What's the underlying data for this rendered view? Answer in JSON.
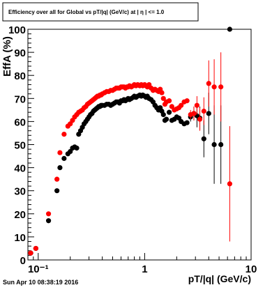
{
  "title": "Efficiency over all for Global vs pT/|q| (GeV/c) at | η | <= 1.0",
  "footer_timestamp": "Sun Apr 10 08:38:19 2016",
  "chart_data": {
    "type": "scatter",
    "title": "Efficiency over all for Global vs pT/|q| (GeV/c) at | η | <= 1.0",
    "xlabel": "pT/|q| (GeV/c)",
    "ylabel": "EffA (%)",
    "xscale": "log",
    "xlim": [
      0.08,
      10
    ],
    "ylim": [
      0,
      100
    ],
    "x_tick_labels": [
      {
        "v": 0.1,
        "t": "10⁻¹"
      },
      {
        "v": 1,
        "t": "1"
      },
      {
        "v": 10,
        "t": "10"
      }
    ],
    "y_ticks": [
      0,
      10,
      20,
      30,
      40,
      50,
      60,
      70,
      80,
      90,
      100
    ],
    "grid": false,
    "legend": "none",
    "series": [
      {
        "color": "#000000",
        "points": [
          {
            "x": 0.085,
            "y": 3,
            "xlo": 0.08,
            "xhi": 0.09
          },
          {
            "x": 0.095,
            "y": 5,
            "xlo": 0.09,
            "xhi": 0.1
          },
          {
            "x": 0.125,
            "y": 17,
            "xlo": 0.12,
            "xhi": 0.13
          },
          {
            "x": 0.15,
            "y": 30
          },
          {
            "x": 0.16,
            "y": 40
          },
          {
            "x": 0.175,
            "y": 44
          },
          {
            "x": 0.19,
            "y": 46
          },
          {
            "x": 0.2,
            "y": 47
          },
          {
            "x": 0.21,
            "y": 48.5
          },
          {
            "x": 0.22,
            "y": 49
          },
          {
            "x": 0.23,
            "y": 48.5
          },
          {
            "x": 0.24,
            "y": 54.5
          },
          {
            "x": 0.25,
            "y": 56
          },
          {
            "x": 0.26,
            "y": 57.5
          },
          {
            "x": 0.27,
            "y": 59
          },
          {
            "x": 0.28,
            "y": 60
          },
          {
            "x": 0.29,
            "y": 61
          },
          {
            "x": 0.3,
            "y": 62
          },
          {
            "x": 0.31,
            "y": 63
          },
          {
            "x": 0.32,
            "y": 63.5
          },
          {
            "x": 0.33,
            "y": 64.5
          },
          {
            "x": 0.34,
            "y": 65
          },
          {
            "x": 0.35,
            "y": 65.5
          },
          {
            "x": 0.36,
            "y": 66
          },
          {
            "x": 0.37,
            "y": 66.5
          },
          {
            "x": 0.38,
            "y": 66.5
          },
          {
            "x": 0.39,
            "y": 67
          },
          {
            "x": 0.4,
            "y": 67
          },
          {
            "x": 0.42,
            "y": 67
          },
          {
            "x": 0.44,
            "y": 67.5
          },
          {
            "x": 0.46,
            "y": 67.5
          },
          {
            "x": 0.48,
            "y": 67
          },
          {
            "x": 0.5,
            "y": 67.5
          },
          {
            "x": 0.52,
            "y": 68
          },
          {
            "x": 0.54,
            "y": 68.5
          },
          {
            "x": 0.56,
            "y": 68.5
          },
          {
            "x": 0.58,
            "y": 68
          },
          {
            "x": 0.6,
            "y": 69
          },
          {
            "x": 0.62,
            "y": 69
          },
          {
            "x": 0.64,
            "y": 69.5
          },
          {
            "x": 0.66,
            "y": 69
          },
          {
            "x": 0.68,
            "y": 69.5
          },
          {
            "x": 0.7,
            "y": 70
          },
          {
            "x": 0.72,
            "y": 69.5
          },
          {
            "x": 0.75,
            "y": 70
          },
          {
            "x": 0.78,
            "y": 70.5
          },
          {
            "x": 0.8,
            "y": 71
          },
          {
            "x": 0.83,
            "y": 70.5
          },
          {
            "x": 0.86,
            "y": 71
          },
          {
            "x": 0.9,
            "y": 71.5
          },
          {
            "x": 0.93,
            "y": 71
          },
          {
            "x": 0.96,
            "y": 71.5
          },
          {
            "x": 1.0,
            "y": 71
          },
          {
            "x": 1.03,
            "y": 70.5
          },
          {
            "x": 1.06,
            "y": 71
          },
          {
            "x": 1.1,
            "y": 70
          },
          {
            "x": 1.15,
            "y": 69.5
          },
          {
            "x": 1.2,
            "y": 68.5
          },
          {
            "x": 1.25,
            "y": 67
          },
          {
            "x": 1.3,
            "y": 66
          },
          {
            "x": 1.35,
            "y": 65
          },
          {
            "x": 1.4,
            "y": 66
          },
          {
            "x": 1.45,
            "y": 64.5
          },
          {
            "x": 1.5,
            "y": 63
          },
          {
            "x": 1.55,
            "y": 60.5
          },
          {
            "x": 1.6,
            "y": 61
          },
          {
            "x": 1.7,
            "y": 64
          },
          {
            "x": 1.8,
            "y": 60.5
          },
          {
            "x": 1.9,
            "y": 61
          },
          {
            "x": 2.0,
            "y": 62
          },
          {
            "x": 2.1,
            "y": 61.5
          },
          {
            "x": 2.2,
            "y": 60
          },
          {
            "x": 2.35,
            "y": 59
          },
          {
            "x": 2.5,
            "y": 59.5
          },
          {
            "x": 2.7,
            "y": 62,
            "err": 2
          },
          {
            "x": 2.9,
            "y": 63.5,
            "err": 3
          },
          {
            "x": 3.1,
            "y": 62.5,
            "err": 5
          },
          {
            "x": 3.3,
            "y": 61.5,
            "err": 5
          },
          {
            "x": 3.6,
            "y": 52.5,
            "err": 8
          },
          {
            "x": 4.0,
            "y": 63.5,
            "err": 9
          },
          {
            "x": 4.5,
            "y": 50,
            "err": 17
          },
          {
            "x": 5.2,
            "y": 50,
            "err": 17
          },
          {
            "x": 6.3,
            "y": 100,
            "err": 0
          }
        ]
      },
      {
        "color": "#ff0000",
        "points": [
          {
            "x": 0.085,
            "y": 3,
            "xlo": 0.08,
            "xhi": 0.09
          },
          {
            "x": 0.095,
            "y": 5,
            "xlo": 0.09,
            "xhi": 0.1
          },
          {
            "x": 0.125,
            "y": 20,
            "xlo": 0.12,
            "xhi": 0.13
          },
          {
            "x": 0.15,
            "y": 35
          },
          {
            "x": 0.16,
            "y": 46.5
          },
          {
            "x": 0.175,
            "y": 54.5
          },
          {
            "x": 0.19,
            "y": 58
          },
          {
            "x": 0.2,
            "y": 59
          },
          {
            "x": 0.21,
            "y": 60.5
          },
          {
            "x": 0.22,
            "y": 62
          },
          {
            "x": 0.23,
            "y": 63
          },
          {
            "x": 0.24,
            "y": 64
          },
          {
            "x": 0.25,
            "y": 64.5
          },
          {
            "x": 0.26,
            "y": 65
          },
          {
            "x": 0.27,
            "y": 66
          },
          {
            "x": 0.28,
            "y": 66.5
          },
          {
            "x": 0.29,
            "y": 67.5
          },
          {
            "x": 0.3,
            "y": 68
          },
          {
            "x": 0.31,
            "y": 68.5
          },
          {
            "x": 0.32,
            "y": 69
          },
          {
            "x": 0.33,
            "y": 69.5
          },
          {
            "x": 0.34,
            "y": 70
          },
          {
            "x": 0.35,
            "y": 70.5
          },
          {
            "x": 0.36,
            "y": 71
          },
          {
            "x": 0.37,
            "y": 71
          },
          {
            "x": 0.38,
            "y": 71.5
          },
          {
            "x": 0.39,
            "y": 71.5
          },
          {
            "x": 0.4,
            "y": 72
          },
          {
            "x": 0.42,
            "y": 72.5
          },
          {
            "x": 0.44,
            "y": 73
          },
          {
            "x": 0.46,
            "y": 73
          },
          {
            "x": 0.48,
            "y": 73.5
          },
          {
            "x": 0.5,
            "y": 73.5
          },
          {
            "x": 0.52,
            "y": 74
          },
          {
            "x": 0.54,
            "y": 74.5
          },
          {
            "x": 0.56,
            "y": 74.5
          },
          {
            "x": 0.58,
            "y": 74.5
          },
          {
            "x": 0.6,
            "y": 75
          },
          {
            "x": 0.62,
            "y": 75
          },
          {
            "x": 0.64,
            "y": 75
          },
          {
            "x": 0.66,
            "y": 74.5
          },
          {
            "x": 0.68,
            "y": 75
          },
          {
            "x": 0.7,
            "y": 75
          },
          {
            "x": 0.72,
            "y": 75.5
          },
          {
            "x": 0.75,
            "y": 75
          },
          {
            "x": 0.78,
            "y": 75.5
          },
          {
            "x": 0.8,
            "y": 76
          },
          {
            "x": 0.83,
            "y": 75.5
          },
          {
            "x": 0.86,
            "y": 76
          },
          {
            "x": 0.9,
            "y": 75.5
          },
          {
            "x": 0.93,
            "y": 76
          },
          {
            "x": 0.96,
            "y": 75.5
          },
          {
            "x": 1.0,
            "y": 76
          },
          {
            "x": 1.03,
            "y": 75.5
          },
          {
            "x": 1.06,
            "y": 75
          },
          {
            "x": 1.1,
            "y": 76
          },
          {
            "x": 1.15,
            "y": 74.5
          },
          {
            "x": 1.2,
            "y": 73.5
          },
          {
            "x": 1.25,
            "y": 74
          },
          {
            "x": 1.3,
            "y": 73.5
          },
          {
            "x": 1.35,
            "y": 73
          },
          {
            "x": 1.4,
            "y": 74
          },
          {
            "x": 1.45,
            "y": 72.5
          },
          {
            "x": 1.5,
            "y": 70
          },
          {
            "x": 1.55,
            "y": 67.5
          },
          {
            "x": 1.6,
            "y": 68.5
          },
          {
            "x": 1.7,
            "y": 69
          },
          {
            "x": 1.8,
            "y": 66.5
          },
          {
            "x": 1.9,
            "y": 65
          },
          {
            "x": 2.0,
            "y": 65.5
          },
          {
            "x": 2.1,
            "y": 66
          },
          {
            "x": 2.2,
            "y": 67
          },
          {
            "x": 2.35,
            "y": 68.5
          },
          {
            "x": 2.5,
            "y": 69
          },
          {
            "x": 2.7,
            "y": 63,
            "err": 2
          },
          {
            "x": 2.9,
            "y": 63.5,
            "err": 3
          },
          {
            "x": 3.1,
            "y": 67,
            "err": 4
          },
          {
            "x": 3.3,
            "y": 61,
            "err": 5
          },
          {
            "x": 3.6,
            "y": 64.5,
            "err": 6
          },
          {
            "x": 4.0,
            "y": 76.5,
            "err": 10
          },
          {
            "x": 4.5,
            "y": 75,
            "err": 12
          },
          {
            "x": 5.2,
            "y": 75,
            "err": 15
          },
          {
            "x": 6.3,
            "y": 33,
            "err": 25
          }
        ]
      }
    ]
  }
}
